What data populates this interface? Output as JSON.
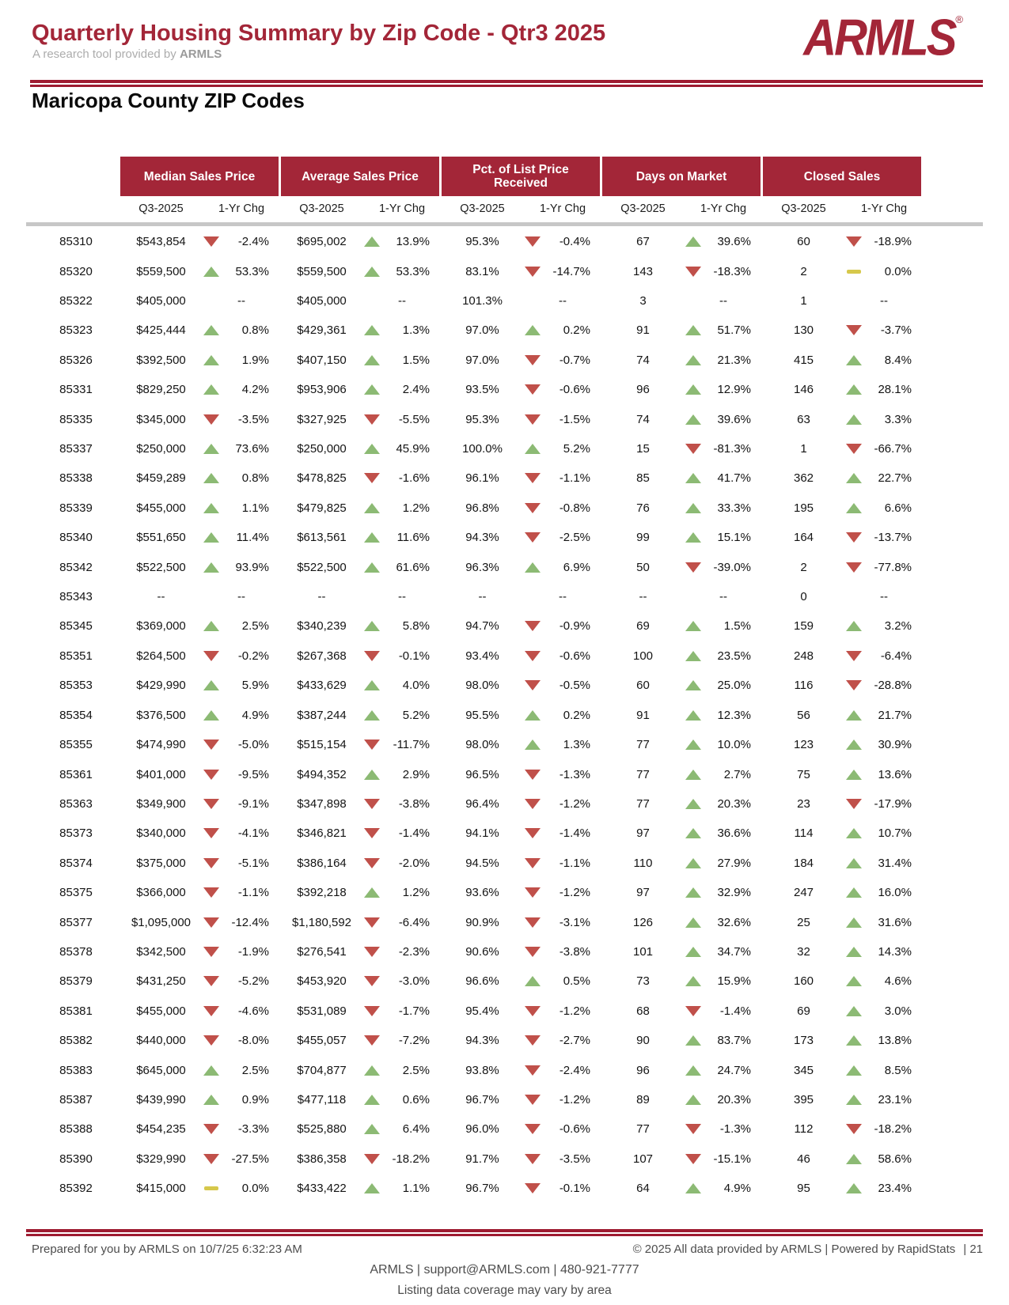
{
  "header": {
    "title": "Quarterly Housing Summary by Zip Code - Qtr3 2025",
    "subtitle_prefix": "A research tool provided by",
    "subtitle_brand": "ARMLS",
    "logo_text": "ARMLS",
    "logo_reg": "®"
  },
  "section_title": "Maricopa County ZIP Codes",
  "colors": {
    "brand_red": "#a32638",
    "rule_red": "#9e1b31",
    "up_green": "#8cba74",
    "down_red": "#c0504a",
    "flat_yellow": "#d6c84b",
    "divider_gray": "#c7c7c7",
    "footer_gray": "#4d4d4d",
    "subtitle_gray": "#acacac"
  },
  "table": {
    "groups": [
      {
        "label": "Median Sales Price"
      },
      {
        "label": "Average Sales Price"
      },
      {
        "label": "Pct. of List Price Received"
      },
      {
        "label": "Days on Market"
      },
      {
        "label": "Closed Sales"
      }
    ],
    "subheaders": {
      "period": "Q3-2025",
      "change": "1-Yr Chg"
    },
    "rows": [
      {
        "zip": "85310",
        "cells": [
          {
            "v": "$543,854",
            "d": "down",
            "c": "-2.4%"
          },
          {
            "v": "$695,002",
            "d": "up",
            "c": "13.9%"
          },
          {
            "v": "95.3%",
            "d": "down",
            "c": "-0.4%"
          },
          {
            "v": "67",
            "d": "up",
            "c": "39.6%"
          },
          {
            "v": "60",
            "d": "down",
            "c": "-18.9%"
          }
        ]
      },
      {
        "zip": "85320",
        "cells": [
          {
            "v": "$559,500",
            "d": "up",
            "c": "53.3%"
          },
          {
            "v": "$559,500",
            "d": "up",
            "c": "53.3%"
          },
          {
            "v": "83.1%",
            "d": "down",
            "c": "-14.7%"
          },
          {
            "v": "143",
            "d": "down",
            "c": "-18.3%"
          },
          {
            "v": "2",
            "d": "flat",
            "c": "0.0%"
          }
        ]
      },
      {
        "zip": "85322",
        "cells": [
          {
            "v": "$405,000",
            "d": "none",
            "c": "--"
          },
          {
            "v": "$405,000",
            "d": "none",
            "c": "--"
          },
          {
            "v": "101.3%",
            "d": "none",
            "c": "--"
          },
          {
            "v": "3",
            "d": "none",
            "c": "--"
          },
          {
            "v": "1",
            "d": "none",
            "c": "--"
          }
        ]
      },
      {
        "zip": "85323",
        "cells": [
          {
            "v": "$425,444",
            "d": "up",
            "c": "0.8%"
          },
          {
            "v": "$429,361",
            "d": "up",
            "c": "1.3%"
          },
          {
            "v": "97.0%",
            "d": "up",
            "c": "0.2%"
          },
          {
            "v": "91",
            "d": "up",
            "c": "51.7%"
          },
          {
            "v": "130",
            "d": "down",
            "c": "-3.7%"
          }
        ]
      },
      {
        "zip": "85326",
        "cells": [
          {
            "v": "$392,500",
            "d": "up",
            "c": "1.9%"
          },
          {
            "v": "$407,150",
            "d": "up",
            "c": "1.5%"
          },
          {
            "v": "97.0%",
            "d": "down",
            "c": "-0.7%"
          },
          {
            "v": "74",
            "d": "up",
            "c": "21.3%"
          },
          {
            "v": "415",
            "d": "up",
            "c": "8.4%"
          }
        ]
      },
      {
        "zip": "85331",
        "cells": [
          {
            "v": "$829,250",
            "d": "up",
            "c": "4.2%"
          },
          {
            "v": "$953,906",
            "d": "up",
            "c": "2.4%"
          },
          {
            "v": "93.5%",
            "d": "down",
            "c": "-0.6%"
          },
          {
            "v": "96",
            "d": "up",
            "c": "12.9%"
          },
          {
            "v": "146",
            "d": "up",
            "c": "28.1%"
          }
        ]
      },
      {
        "zip": "85335",
        "cells": [
          {
            "v": "$345,000",
            "d": "down",
            "c": "-3.5%"
          },
          {
            "v": "$327,925",
            "d": "down",
            "c": "-5.5%"
          },
          {
            "v": "95.3%",
            "d": "down",
            "c": "-1.5%"
          },
          {
            "v": "74",
            "d": "up",
            "c": "39.6%"
          },
          {
            "v": "63",
            "d": "up",
            "c": "3.3%"
          }
        ]
      },
      {
        "zip": "85337",
        "cells": [
          {
            "v": "$250,000",
            "d": "up",
            "c": "73.6%"
          },
          {
            "v": "$250,000",
            "d": "up",
            "c": "45.9%"
          },
          {
            "v": "100.0%",
            "d": "up",
            "c": "5.2%"
          },
          {
            "v": "15",
            "d": "down",
            "c": "-81.3%"
          },
          {
            "v": "1",
            "d": "down",
            "c": "-66.7%"
          }
        ]
      },
      {
        "zip": "85338",
        "cells": [
          {
            "v": "$459,289",
            "d": "up",
            "c": "0.8%"
          },
          {
            "v": "$478,825",
            "d": "down",
            "c": "-1.6%"
          },
          {
            "v": "96.1%",
            "d": "down",
            "c": "-1.1%"
          },
          {
            "v": "85",
            "d": "up",
            "c": "41.7%"
          },
          {
            "v": "362",
            "d": "up",
            "c": "22.7%"
          }
        ]
      },
      {
        "zip": "85339",
        "cells": [
          {
            "v": "$455,000",
            "d": "up",
            "c": "1.1%"
          },
          {
            "v": "$479,825",
            "d": "up",
            "c": "1.2%"
          },
          {
            "v": "96.8%",
            "d": "down",
            "c": "-0.8%"
          },
          {
            "v": "76",
            "d": "up",
            "c": "33.3%"
          },
          {
            "v": "195",
            "d": "up",
            "c": "6.6%"
          }
        ]
      },
      {
        "zip": "85340",
        "cells": [
          {
            "v": "$551,650",
            "d": "up",
            "c": "11.4%"
          },
          {
            "v": "$613,561",
            "d": "up",
            "c": "11.6%"
          },
          {
            "v": "94.3%",
            "d": "down",
            "c": "-2.5%"
          },
          {
            "v": "99",
            "d": "up",
            "c": "15.1%"
          },
          {
            "v": "164",
            "d": "down",
            "c": "-13.7%"
          }
        ]
      },
      {
        "zip": "85342",
        "cells": [
          {
            "v": "$522,500",
            "d": "up",
            "c": "93.9%"
          },
          {
            "v": "$522,500",
            "d": "up",
            "c": "61.6%"
          },
          {
            "v": "96.3%",
            "d": "up",
            "c": "6.9%"
          },
          {
            "v": "50",
            "d": "down",
            "c": "-39.0%"
          },
          {
            "v": "2",
            "d": "down",
            "c": "-77.8%"
          }
        ]
      },
      {
        "zip": "85343",
        "cells": [
          {
            "v": "--",
            "d": "none",
            "c": "--"
          },
          {
            "v": "--",
            "d": "none",
            "c": "--"
          },
          {
            "v": "--",
            "d": "none",
            "c": "--"
          },
          {
            "v": "--",
            "d": "none",
            "c": "--"
          },
          {
            "v": "0",
            "d": "none",
            "c": "--"
          }
        ]
      },
      {
        "zip": "85345",
        "cells": [
          {
            "v": "$369,000",
            "d": "up",
            "c": "2.5%"
          },
          {
            "v": "$340,239",
            "d": "up",
            "c": "5.8%"
          },
          {
            "v": "94.7%",
            "d": "down",
            "c": "-0.9%"
          },
          {
            "v": "69",
            "d": "up",
            "c": "1.5%"
          },
          {
            "v": "159",
            "d": "up",
            "c": "3.2%"
          }
        ]
      },
      {
        "zip": "85351",
        "cells": [
          {
            "v": "$264,500",
            "d": "down",
            "c": "-0.2%"
          },
          {
            "v": "$267,368",
            "d": "down",
            "c": "-0.1%"
          },
          {
            "v": "93.4%",
            "d": "down",
            "c": "-0.6%"
          },
          {
            "v": "100",
            "d": "up",
            "c": "23.5%"
          },
          {
            "v": "248",
            "d": "down",
            "c": "-6.4%"
          }
        ]
      },
      {
        "zip": "85353",
        "cells": [
          {
            "v": "$429,990",
            "d": "up",
            "c": "5.9%"
          },
          {
            "v": "$433,629",
            "d": "up",
            "c": "4.0%"
          },
          {
            "v": "98.0%",
            "d": "down",
            "c": "-0.5%"
          },
          {
            "v": "60",
            "d": "up",
            "c": "25.0%"
          },
          {
            "v": "116",
            "d": "down",
            "c": "-28.8%"
          }
        ]
      },
      {
        "zip": "85354",
        "cells": [
          {
            "v": "$376,500",
            "d": "up",
            "c": "4.9%"
          },
          {
            "v": "$387,244",
            "d": "up",
            "c": "5.2%"
          },
          {
            "v": "95.5%",
            "d": "up",
            "c": "0.2%"
          },
          {
            "v": "91",
            "d": "up",
            "c": "12.3%"
          },
          {
            "v": "56",
            "d": "up",
            "c": "21.7%"
          }
        ]
      },
      {
        "zip": "85355",
        "cells": [
          {
            "v": "$474,990",
            "d": "down",
            "c": "-5.0%"
          },
          {
            "v": "$515,154",
            "d": "down",
            "c": "-11.7%"
          },
          {
            "v": "98.0%",
            "d": "up",
            "c": "1.3%"
          },
          {
            "v": "77",
            "d": "up",
            "c": "10.0%"
          },
          {
            "v": "123",
            "d": "up",
            "c": "30.9%"
          }
        ]
      },
      {
        "zip": "85361",
        "cells": [
          {
            "v": "$401,000",
            "d": "down",
            "c": "-9.5%"
          },
          {
            "v": "$494,352",
            "d": "up",
            "c": "2.9%"
          },
          {
            "v": "96.5%",
            "d": "down",
            "c": "-1.3%"
          },
          {
            "v": "77",
            "d": "up",
            "c": "2.7%"
          },
          {
            "v": "75",
            "d": "up",
            "c": "13.6%"
          }
        ]
      },
      {
        "zip": "85363",
        "cells": [
          {
            "v": "$349,900",
            "d": "down",
            "c": "-9.1%"
          },
          {
            "v": "$347,898",
            "d": "down",
            "c": "-3.8%"
          },
          {
            "v": "96.4%",
            "d": "down",
            "c": "-1.2%"
          },
          {
            "v": "77",
            "d": "up",
            "c": "20.3%"
          },
          {
            "v": "23",
            "d": "down",
            "c": "-17.9%"
          }
        ]
      },
      {
        "zip": "85373",
        "cells": [
          {
            "v": "$340,000",
            "d": "down",
            "c": "-4.1%"
          },
          {
            "v": "$346,821",
            "d": "down",
            "c": "-1.4%"
          },
          {
            "v": "94.1%",
            "d": "down",
            "c": "-1.4%"
          },
          {
            "v": "97",
            "d": "up",
            "c": "36.6%"
          },
          {
            "v": "114",
            "d": "up",
            "c": "10.7%"
          }
        ]
      },
      {
        "zip": "85374",
        "cells": [
          {
            "v": "$375,000",
            "d": "down",
            "c": "-5.1%"
          },
          {
            "v": "$386,164",
            "d": "down",
            "c": "-2.0%"
          },
          {
            "v": "94.5%",
            "d": "down",
            "c": "-1.1%"
          },
          {
            "v": "110",
            "d": "up",
            "c": "27.9%"
          },
          {
            "v": "184",
            "d": "up",
            "c": "31.4%"
          }
        ]
      },
      {
        "zip": "85375",
        "cells": [
          {
            "v": "$366,000",
            "d": "down",
            "c": "-1.1%"
          },
          {
            "v": "$392,218",
            "d": "up",
            "c": "1.2%"
          },
          {
            "v": "93.6%",
            "d": "down",
            "c": "-1.2%"
          },
          {
            "v": "97",
            "d": "up",
            "c": "32.9%"
          },
          {
            "v": "247",
            "d": "up",
            "c": "16.0%"
          }
        ]
      },
      {
        "zip": "85377",
        "cells": [
          {
            "v": "$1,095,000",
            "d": "down",
            "c": "-12.4%"
          },
          {
            "v": "$1,180,592",
            "d": "down",
            "c": "-6.4%"
          },
          {
            "v": "90.9%",
            "d": "down",
            "c": "-3.1%"
          },
          {
            "v": "126",
            "d": "up",
            "c": "32.6%"
          },
          {
            "v": "25",
            "d": "up",
            "c": "31.6%"
          }
        ]
      },
      {
        "zip": "85378",
        "cells": [
          {
            "v": "$342,500",
            "d": "down",
            "c": "-1.9%"
          },
          {
            "v": "$276,541",
            "d": "down",
            "c": "-2.3%"
          },
          {
            "v": "90.6%",
            "d": "down",
            "c": "-3.8%"
          },
          {
            "v": "101",
            "d": "up",
            "c": "34.7%"
          },
          {
            "v": "32",
            "d": "up",
            "c": "14.3%"
          }
        ]
      },
      {
        "zip": "85379",
        "cells": [
          {
            "v": "$431,250",
            "d": "down",
            "c": "-5.2%"
          },
          {
            "v": "$453,920",
            "d": "down",
            "c": "-3.0%"
          },
          {
            "v": "96.6%",
            "d": "up",
            "c": "0.5%"
          },
          {
            "v": "73",
            "d": "up",
            "c": "15.9%"
          },
          {
            "v": "160",
            "d": "up",
            "c": "4.6%"
          }
        ]
      },
      {
        "zip": "85381",
        "cells": [
          {
            "v": "$455,000",
            "d": "down",
            "c": "-4.6%"
          },
          {
            "v": "$531,089",
            "d": "down",
            "c": "-1.7%"
          },
          {
            "v": "95.4%",
            "d": "down",
            "c": "-1.2%"
          },
          {
            "v": "68",
            "d": "down",
            "c": "-1.4%"
          },
          {
            "v": "69",
            "d": "up",
            "c": "3.0%"
          }
        ]
      },
      {
        "zip": "85382",
        "cells": [
          {
            "v": "$440,000",
            "d": "down",
            "c": "-8.0%"
          },
          {
            "v": "$455,057",
            "d": "down",
            "c": "-7.2%"
          },
          {
            "v": "94.3%",
            "d": "down",
            "c": "-2.7%"
          },
          {
            "v": "90",
            "d": "up",
            "c": "83.7%"
          },
          {
            "v": "173",
            "d": "up",
            "c": "13.8%"
          }
        ]
      },
      {
        "zip": "85383",
        "cells": [
          {
            "v": "$645,000",
            "d": "up",
            "c": "2.5%"
          },
          {
            "v": "$704,877",
            "d": "up",
            "c": "2.5%"
          },
          {
            "v": "93.8%",
            "d": "down",
            "c": "-2.4%"
          },
          {
            "v": "96",
            "d": "up",
            "c": "24.7%"
          },
          {
            "v": "345",
            "d": "up",
            "c": "8.5%"
          }
        ]
      },
      {
        "zip": "85387",
        "cells": [
          {
            "v": "$439,990",
            "d": "up",
            "c": "0.9%"
          },
          {
            "v": "$477,118",
            "d": "up",
            "c": "0.6%"
          },
          {
            "v": "96.7%",
            "d": "down",
            "c": "-1.2%"
          },
          {
            "v": "89",
            "d": "up",
            "c": "20.3%"
          },
          {
            "v": "395",
            "d": "up",
            "c": "23.1%"
          }
        ]
      },
      {
        "zip": "85388",
        "cells": [
          {
            "v": "$454,235",
            "d": "down",
            "c": "-3.3%"
          },
          {
            "v": "$525,880",
            "d": "up",
            "c": "6.4%"
          },
          {
            "v": "96.0%",
            "d": "down",
            "c": "-0.6%"
          },
          {
            "v": "77",
            "d": "down",
            "c": "-1.3%"
          },
          {
            "v": "112",
            "d": "down",
            "c": "-18.2%"
          }
        ]
      },
      {
        "zip": "85390",
        "cells": [
          {
            "v": "$329,990",
            "d": "down",
            "c": "-27.5%"
          },
          {
            "v": "$386,358",
            "d": "down",
            "c": "-18.2%"
          },
          {
            "v": "91.7%",
            "d": "down",
            "c": "-3.5%"
          },
          {
            "v": "107",
            "d": "down",
            "c": "-15.1%"
          },
          {
            "v": "46",
            "d": "up",
            "c": "58.6%"
          }
        ]
      },
      {
        "zip": "85392",
        "cells": [
          {
            "v": "$415,000",
            "d": "flat",
            "c": "0.0%"
          },
          {
            "v": "$433,422",
            "d": "up",
            "c": "1.1%"
          },
          {
            "v": "96.7%",
            "d": "down",
            "c": "-0.1%"
          },
          {
            "v": "64",
            "d": "up",
            "c": "4.9%"
          },
          {
            "v": "95",
            "d": "up",
            "c": "23.4%"
          }
        ]
      }
    ]
  },
  "footer": {
    "prepared": "Prepared for you by ARMLS on 10/7/25 6:32:23 AM",
    "copyright": "© 2025 All data provided by ARMLS | Powered by RapidStats",
    "page": "| 21",
    "contact": "ARMLS | support@ARMLS.com | 480-921-7777",
    "coverage": "Listing data coverage may vary by area"
  }
}
